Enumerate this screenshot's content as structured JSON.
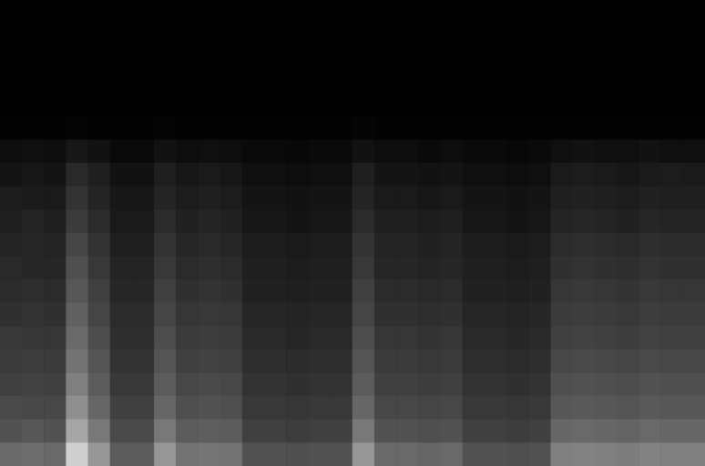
{
  "chart_data": {
    "type": "heatmap",
    "value_range": [
      0,
      100
    ],
    "tick_labels": false,
    "grid": false,
    "cells": [
      [
        0,
        0,
        0,
        0,
        0,
        0,
        0,
        0,
        0,
        0,
        0,
        0,
        0,
        0,
        0,
        0,
        0,
        0,
        0,
        0,
        0,
        0,
        0,
        0,
        0,
        0,
        0,
        0,
        0,
        0,
        0,
        0
      ],
      [
        0,
        0,
        0,
        0,
        0,
        0,
        0,
        0,
        0,
        0,
        0,
        0,
        0,
        0,
        0,
        0,
        0,
        0,
        0,
        0,
        0,
        0,
        0,
        0,
        0,
        0,
        0,
        0,
        0,
        0,
        0,
        0
      ],
      [
        0,
        0,
        0,
        0,
        0,
        0,
        0,
        0,
        0,
        0,
        0,
        0,
        0,
        0,
        0,
        0,
        0,
        0,
        0,
        0,
        0,
        0,
        0,
        0,
        0,
        0,
        0,
        0,
        0,
        0,
        0,
        0
      ],
      [
        0,
        0,
        0,
        0,
        0,
        0,
        0,
        0,
        0,
        0,
        0,
        0,
        0,
        0,
        0,
        0,
        0,
        0,
        0,
        0,
        0,
        0,
        0,
        0,
        0,
        0,
        0,
        0,
        0,
        0,
        0,
        0
      ],
      [
        0,
        0,
        0,
        0,
        0,
        0,
        0,
        0,
        0,
        0,
        0,
        0,
        0,
        0,
        0,
        0,
        0,
        0,
        0,
        0,
        0,
        0,
        0,
        0,
        0,
        0,
        0,
        0,
        0,
        0,
        0,
        0
      ],
      [
        1,
        1,
        1,
        2,
        1,
        1,
        1,
        2,
        1,
        1,
        1,
        1,
        1,
        1,
        1,
        1,
        2,
        1,
        1,
        1,
        1,
        1,
        1,
        1,
        1,
        1,
        1,
        1,
        1,
        1,
        1,
        1
      ],
      [
        5,
        6,
        5,
        9,
        7,
        4,
        4,
        7,
        5,
        6,
        5,
        4,
        4,
        3,
        4,
        4,
        7,
        5,
        5,
        4,
        5,
        4,
        4,
        3,
        4,
        6,
        7,
        6,
        6,
        7,
        6,
        6
      ],
      [
        8,
        9,
        8,
        16,
        12,
        7,
        7,
        12,
        9,
        10,
        9,
        6,
        6,
        5,
        6,
        6,
        12,
        8,
        8,
        7,
        8,
        6,
        6,
        5,
        6,
        10,
        11,
        10,
        9,
        10,
        11,
        10
      ],
      [
        11,
        10,
        10,
        20,
        14,
        9,
        9,
        14,
        11,
        12,
        11,
        8,
        8,
        7,
        8,
        8,
        14,
        10,
        10,
        9,
        10,
        8,
        8,
        7,
        8,
        12,
        13,
        12,
        11,
        13,
        12,
        12
      ],
      [
        12,
        14,
        12,
        23,
        17,
        10,
        10,
        17,
        13,
        14,
        13,
        9,
        9,
        8,
        9,
        9,
        17,
        12,
        12,
        11,
        12,
        9,
        9,
        8,
        9,
        14,
        15,
        14,
        13,
        15,
        14,
        14
      ],
      [
        14,
        15,
        14,
        27,
        20,
        12,
        12,
        20,
        15,
        16,
        15,
        11,
        11,
        10,
        11,
        11,
        20,
        14,
        14,
        13,
        14,
        11,
        11,
        10,
        11,
        17,
        18,
        17,
        16,
        18,
        17,
        17
      ],
      [
        16,
        15,
        15,
        31,
        22,
        14,
        14,
        22,
        17,
        18,
        17,
        12,
        12,
        11,
        12,
        12,
        22,
        15,
        15,
        14,
        15,
        12,
        12,
        11,
        12,
        19,
        20,
        19,
        18,
        20,
        19,
        19
      ],
      [
        17,
        18,
        17,
        34,
        25,
        15,
        15,
        25,
        19,
        20,
        19,
        13,
        13,
        12,
        13,
        13,
        25,
        17,
        17,
        16,
        17,
        13,
        13,
        12,
        13,
        21,
        22,
        21,
        20,
        22,
        21,
        21
      ],
      [
        19,
        20,
        19,
        38,
        27,
        17,
        17,
        27,
        21,
        22,
        21,
        15,
        15,
        14,
        15,
        15,
        27,
        19,
        19,
        18,
        19,
        15,
        15,
        14,
        15,
        23,
        24,
        23,
        22,
        24,
        23,
        23
      ],
      [
        22,
        21,
        21,
        41,
        30,
        18,
        18,
        30,
        23,
        24,
        23,
        16,
        16,
        15,
        16,
        16,
        30,
        21,
        21,
        20,
        21,
        16,
        16,
        15,
        16,
        25,
        26,
        25,
        24,
        26,
        25,
        25
      ],
      [
        23,
        24,
        23,
        45,
        33,
        20,
        20,
        33,
        25,
        26,
        25,
        18,
        18,
        17,
        18,
        18,
        33,
        23,
        23,
        22,
        23,
        18,
        18,
        17,
        18,
        28,
        29,
        28,
        27,
        29,
        28,
        28
      ],
      [
        25,
        26,
        25,
        50,
        36,
        22,
        22,
        36,
        28,
        29,
        28,
        20,
        20,
        19,
        20,
        20,
        36,
        25,
        25,
        24,
        25,
        20,
        20,
        19,
        20,
        31,
        32,
        31,
        30,
        32,
        31,
        31
      ],
      [
        29,
        28,
        28,
        56,
        40,
        25,
        25,
        40,
        31,
        32,
        31,
        22,
        22,
        21,
        22,
        22,
        40,
        28,
        28,
        27,
        28,
        22,
        22,
        21,
        22,
        34,
        35,
        34,
        33,
        35,
        34,
        34
      ],
      [
        32,
        34,
        32,
        65,
        47,
        29,
        29,
        47,
        36,
        37,
        36,
        25,
        25,
        24,
        25,
        25,
        47,
        32,
        32,
        31,
        32,
        25,
        25,
        24,
        25,
        40,
        41,
        40,
        39,
        41,
        40,
        40
      ],
      [
        41,
        43,
        41,
        81,
        59,
        36,
        36,
        59,
        45,
        46,
        45,
        32,
        32,
        31,
        32,
        32,
        59,
        41,
        41,
        40,
        41,
        32,
        32,
        31,
        32,
        50,
        51,
        50,
        49,
        51,
        50,
        50
      ]
    ]
  }
}
